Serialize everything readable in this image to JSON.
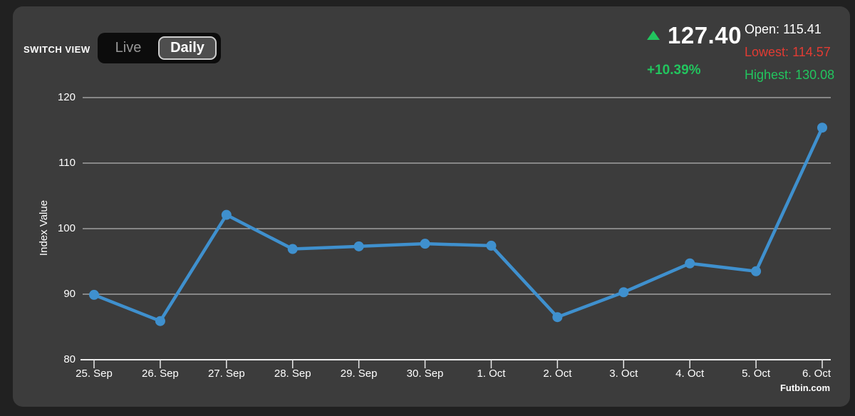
{
  "header": {
    "switch_view_label": "SWITCH VIEW",
    "view_toggle": {
      "live_label": "Live",
      "daily_label": "Daily",
      "selected": "Daily"
    },
    "price": {
      "current_value": "127.40",
      "change_percent": "+10.39%",
      "direction": "up"
    },
    "stats": [
      {
        "label": "Open:",
        "value": "115.41"
      },
      {
        "label": "Lowest:",
        "value": "114.57"
      },
      {
        "label": "Highest:",
        "value": "130.08"
      }
    ]
  },
  "chart_data": {
    "type": "line",
    "categories": [
      "25. Sep",
      "26. Sep",
      "27. Sep",
      "28. Sep",
      "29. Sep",
      "30. Sep",
      "1. Oct",
      "2. Oct",
      "3. Oct",
      "4. Oct",
      "5. Oct",
      "6. Oct"
    ],
    "series": [
      {
        "name": "Index Value",
        "values": [
          89.9,
          85.9,
          102.1,
          96.9,
          97.3,
          97.7,
          97.4,
          86.5,
          90.3,
          94.7,
          93.5,
          115.41
        ]
      }
    ],
    "title": "",
    "xlabel": "",
    "ylabel": "Index Value",
    "ylim": [
      80,
      123
    ],
    "yticks": [
      80,
      90,
      100,
      110,
      120
    ],
    "grid": true,
    "legend": false,
    "line_color": "#3f90ce",
    "marker_radius": 7
  },
  "credit": "Futbin.com",
  "colors": {
    "positive_green": "#22c55e",
    "negative_red": "#e23b33",
    "line_blue": "#3f90ce",
    "card_background": "#3c3c3c",
    "page_background": "#212121",
    "gridline": "#d2d2d2",
    "axis_line": "#eaeaea"
  }
}
